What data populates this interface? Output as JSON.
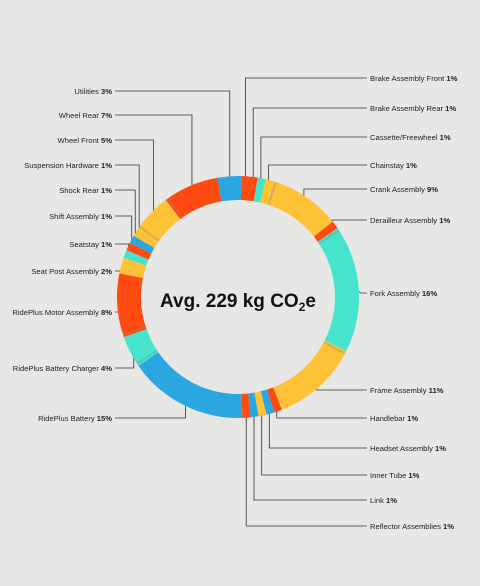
{
  "chart_data": {
    "type": "pie",
    "title": "Avg. 229 kg CO",
    "title_subscript": "2",
    "title_suffix": "e",
    "unit": "%",
    "palette": {
      "blue": "#2aa7e1",
      "orange": "#ff4a12",
      "yellow": "#fdc235",
      "teal": "#46e3cd",
      "gray": "#8a8a8a"
    },
    "slices": [
      {
        "name": "Brake Assembly Front",
        "value": 1,
        "color": "#ff4a12"
      },
      {
        "name": "Brake Assembly Rear",
        "value": 1,
        "color": "#ff4a12"
      },
      {
        "name": "Cassette/Freewheel",
        "value": 1,
        "color": "#46e3cd"
      },
      {
        "name": "Chainstay",
        "value": 1,
        "color": "#fdc235"
      },
      {
        "name": "Crank Assembly",
        "value": 9,
        "color": "#fdc235"
      },
      {
        "name": "Derailleur Assembly",
        "value": 1,
        "color": "#ff4a12"
      },
      {
        "name": "Fork Assembly",
        "value": 16,
        "color": "#46e3cd"
      },
      {
        "name": "Frame Assembly",
        "value": 11,
        "color": "#fdc235"
      },
      {
        "name": "Handlebar",
        "value": 1,
        "color": "#ff4a12"
      },
      {
        "name": "Headset Assembly",
        "value": 1,
        "color": "#2aa7e1"
      },
      {
        "name": "Inner Tube",
        "value": 1,
        "color": "#fdc235"
      },
      {
        "name": "Link",
        "value": 1,
        "color": "#2aa7e1"
      },
      {
        "name": "Reflector Assemblies",
        "value": 1,
        "color": "#ff4a12"
      },
      {
        "name": "RidePlus Battery",
        "value": 15,
        "color": "#2aa7e1"
      },
      {
        "name": "RidePlus Battery Charger",
        "value": 4,
        "color": "#46e3cd"
      },
      {
        "name": "RidePlus Motor Assembly",
        "value": 8,
        "color": "#ff4a12"
      },
      {
        "name": "Seat Post Assembly",
        "value": 2,
        "color": "#fdc235"
      },
      {
        "name": "Seatstay",
        "value": 1,
        "color": "#46e3cd"
      },
      {
        "name": "Shift Assembly",
        "value": 1,
        "color": "#ff4a12"
      },
      {
        "name": "Shock Rear",
        "value": 1,
        "color": "#2aa7e1"
      },
      {
        "name": "Suspension Hardware",
        "value": 1,
        "color": "#fdc235"
      },
      {
        "name": "Wheel Front",
        "value": 5,
        "color": "#fdc235"
      },
      {
        "name": "Wheel Rear",
        "value": 7,
        "color": "#ff4a12"
      },
      {
        "name": "Utilities",
        "value": 3,
        "color": "#2aa7e1"
      }
    ]
  }
}
